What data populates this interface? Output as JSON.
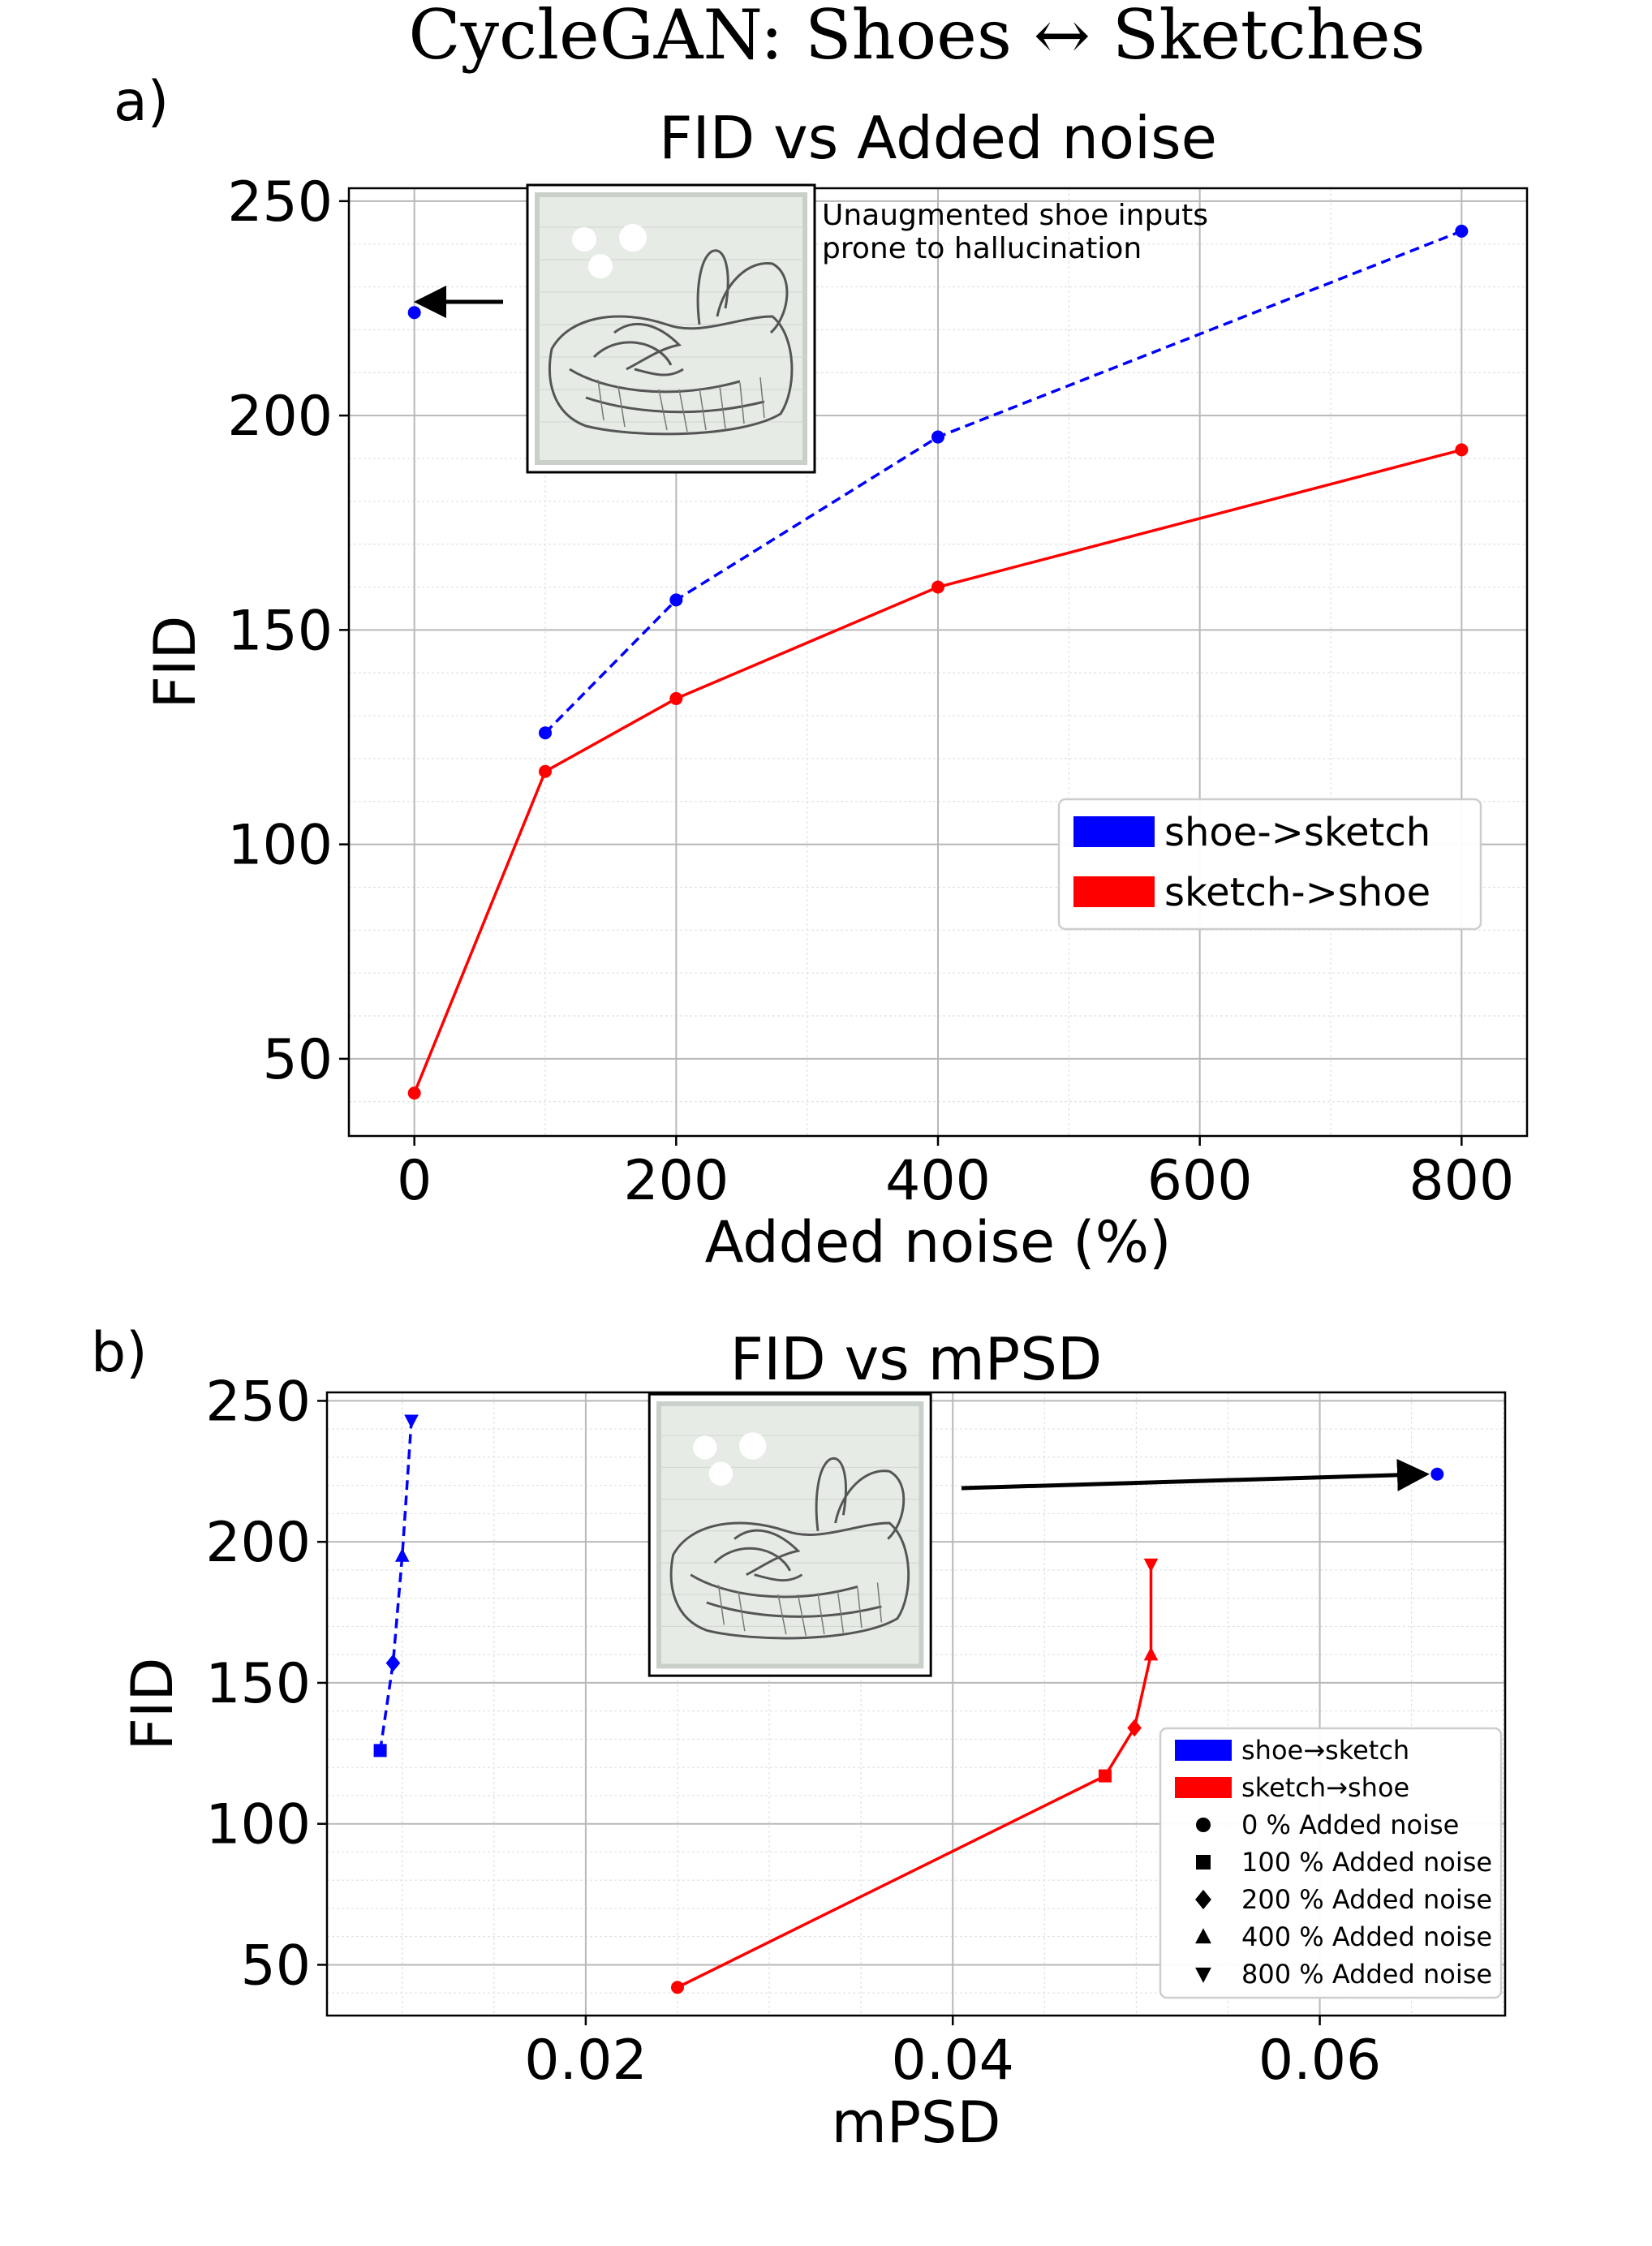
{
  "figure": {
    "title": "CycleGAN: Shoes ↔ Sketches",
    "panel_a_label": "a)",
    "panel_b_label": "b)"
  },
  "chart_data": [
    {
      "type": "line",
      "title": "FID vs Added noise",
      "xlabel": "Added noise (%)",
      "ylabel": "FID",
      "xlim": [
        -50,
        850
      ],
      "ylim": [
        32,
        253
      ],
      "xticks": [
        0,
        200,
        400,
        600,
        800
      ],
      "xtick_labels": [
        "0",
        "200",
        "400",
        "600",
        "800"
      ],
      "yticks": [
        50,
        100,
        150,
        200,
        250
      ],
      "ytick_labels": [
        "50",
        "100",
        "150",
        "200",
        "250"
      ],
      "grid": true,
      "legend_position": "center-right",
      "series": [
        {
          "name": "shoe->sketch",
          "color": "#0000ff",
          "style": "dashed",
          "points": [
            {
              "x": 0,
              "y": 224
            },
            {
              "x": 100,
              "y": 126
            },
            {
              "x": 200,
              "y": 157
            },
            {
              "x": 400,
              "y": 195
            },
            {
              "x": 800,
              "y": 243
            }
          ],
          "connect_from_index": 1
        },
        {
          "name": "sketch->shoe",
          "color": "#ff0000",
          "style": "solid",
          "points": [
            {
              "x": 0,
              "y": 42
            },
            {
              "x": 100,
              "y": 117
            },
            {
              "x": 200,
              "y": 134
            },
            {
              "x": 400,
              "y": 160
            },
            {
              "x": 800,
              "y": 192
            }
          ],
          "connect_from_index": 0
        }
      ],
      "annotation": {
        "line1": "Unaugmented shoe inputs",
        "line2": " prone to hallucination"
      }
    },
    {
      "type": "line",
      "title": "FID vs mPSD",
      "xlabel": "mPSD",
      "ylabel": "FID",
      "xlim": [
        0.0059,
        0.0701
      ],
      "ylim": [
        32,
        253
      ],
      "xticks": [
        0.02,
        0.04,
        0.06
      ],
      "xtick_labels": [
        "0.02",
        "0.04",
        "0.06"
      ],
      "yticks": [
        50,
        100,
        150,
        200,
        250
      ],
      "ytick_labels": [
        "50",
        "100",
        "150",
        "200",
        "250"
      ],
      "grid": true,
      "legend_position": "lower-right",
      "series": [
        {
          "name": "shoe→sketch",
          "color": "#0000ff",
          "style": "dashed",
          "points": [
            {
              "x": 0.0664,
              "y": 224,
              "marker": "circle"
            },
            {
              "x": 0.0088,
              "y": 126,
              "marker": "square"
            },
            {
              "x": 0.0095,
              "y": 157,
              "marker": "diamond"
            },
            {
              "x": 0.01,
              "y": 195,
              "marker": "triangle-up"
            },
            {
              "x": 0.0105,
              "y": 243,
              "marker": "triangle-down"
            }
          ],
          "connect_from_index": 1
        },
        {
          "name": "sketch→shoe",
          "color": "#ff0000",
          "style": "solid",
          "points": [
            {
              "x": 0.025,
              "y": 42,
              "marker": "circle"
            },
            {
              "x": 0.0483,
              "y": 117,
              "marker": "square"
            },
            {
              "x": 0.0499,
              "y": 134,
              "marker": "diamond"
            },
            {
              "x": 0.0508,
              "y": 160,
              "marker": "triangle-up"
            },
            {
              "x": 0.0508,
              "y": 192,
              "marker": "triangle-down"
            }
          ],
          "connect_from_index": 0
        }
      ],
      "marker_legend": [
        {
          "marker": "circle",
          "label": "0 % Added noise"
        },
        {
          "marker": "square",
          "label": "100 % Added noise"
        },
        {
          "marker": "diamond",
          "label": "200 % Added noise"
        },
        {
          "marker": "triangle-up",
          "label": "400 % Added noise"
        },
        {
          "marker": "triangle-down",
          "label": "800 % Added noise"
        }
      ]
    }
  ]
}
